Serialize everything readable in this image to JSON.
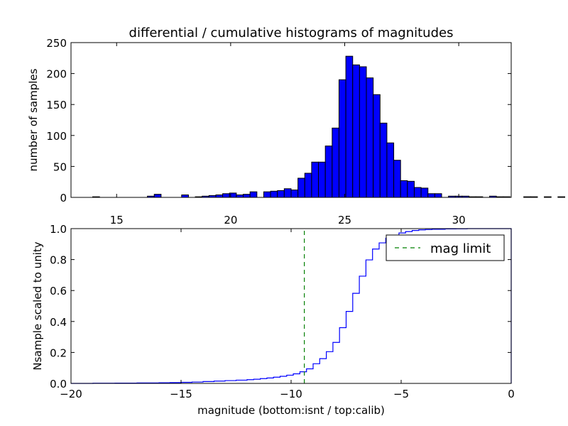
{
  "chart_data": [
    {
      "type": "bar",
      "title": "differential / cumulative histograms of magnitudes",
      "ylabel": "number of samples",
      "xlabel": "",
      "xlim": [
        13.0,
        32.3
      ],
      "ylim": [
        0,
        250
      ],
      "xticks": [
        15,
        20,
        25,
        30
      ],
      "xtick_labels": [
        "15",
        "20",
        "25",
        "30"
      ],
      "yticks": [
        0,
        50,
        100,
        150,
        200,
        250
      ],
      "ytick_labels": [
        "0",
        "50",
        "100",
        "150",
        "200",
        "250"
      ],
      "bin_width": 0.3,
      "bins_start": 13.95,
      "values": [
        1,
        0,
        0,
        0,
        0,
        0,
        0,
        0,
        2,
        5,
        0,
        0,
        0,
        4,
        0,
        1,
        2,
        3,
        4,
        6,
        7,
        4,
        5,
        9,
        0,
        9,
        10,
        11,
        14,
        12,
        31,
        39,
        57,
        57,
        83,
        112,
        190,
        228,
        214,
        211,
        193,
        166,
        120,
        88,
        60,
        27,
        26,
        16,
        15,
        6,
        6,
        0,
        2,
        2,
        2,
        1,
        1,
        0,
        2,
        1,
        1,
        0,
        0,
        1,
        1,
        0,
        1,
        0,
        1,
        0,
        0,
        0,
        1,
        0
      ],
      "bar_color": "#0000ff",
      "grid": false
    },
    {
      "type": "line",
      "title": "",
      "xlabel": "magnitude (bottom:isnt / top:calib)",
      "ylabel": "Nsample scaled to unity",
      "xlim": [
        -20,
        0
      ],
      "ylim": [
        0.0,
        1.0
      ],
      "xticks": [
        -20,
        -15,
        -10,
        -5,
        0
      ],
      "xtick_labels": [
        "−20",
        "−15",
        "−10",
        "−5",
        "0"
      ],
      "yticks": [
        0.0,
        0.2,
        0.4,
        0.6,
        0.8,
        1.0
      ],
      "ytick_labels": [
        "0.0",
        "0.2",
        "0.4",
        "0.6",
        "0.8",
        "1.0"
      ],
      "series": [
        {
          "name": "",
          "color": "#0000ff",
          "style": "steps",
          "x": [
            -20,
            -19,
            -18,
            -17,
            -16,
            -15.5,
            -15,
            -14.5,
            -14,
            -13.5,
            -13,
            -12.5,
            -12,
            -11.7,
            -11.4,
            -11.1,
            -10.8,
            -10.5,
            -10.2,
            -9.9,
            -9.6,
            -9.3,
            -9,
            -8.7,
            -8.4,
            -8.1,
            -7.8,
            -7.5,
            -7.2,
            -6.9,
            -6.6,
            -6.3,
            -6,
            -5.7,
            -5.4,
            -5.1,
            -4.8,
            -4.5,
            -4.2,
            -3.9,
            -3.6,
            -3,
            -2.5,
            -2,
            -1,
            -0.05
          ],
          "y": [
            0.0,
            0.001,
            0.002,
            0.003,
            0.004,
            0.005,
            0.007,
            0.009,
            0.012,
            0.015,
            0.018,
            0.021,
            0.024,
            0.027,
            0.031,
            0.035,
            0.04,
            0.046,
            0.053,
            0.062,
            0.075,
            0.094,
            0.127,
            0.16,
            0.205,
            0.265,
            0.36,
            0.465,
            0.582,
            0.693,
            0.798,
            0.868,
            0.908,
            0.938,
            0.958,
            0.972,
            0.981,
            0.988,
            0.992,
            0.994,
            0.996,
            0.998,
            0.999,
            1.0,
            1.0,
            1.0
          ]
        },
        {
          "name": "mag limit",
          "color": "#008000",
          "style": "dashed",
          "x": [
            -9.4,
            -9.4
          ],
          "y": [
            0.0,
            1.0
          ]
        }
      ],
      "legend_placement": "top-right",
      "grid": false
    }
  ]
}
